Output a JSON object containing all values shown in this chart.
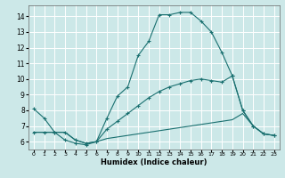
{
  "xlabel": "Humidex (Indice chaleur)",
  "background_color": "#cce8e8",
  "grid_color": "#ffffff",
  "line_color": "#1a7070",
  "xlim": [
    -0.5,
    23.5
  ],
  "ylim": [
    5.5,
    14.7
  ],
  "xticks": [
    0,
    1,
    2,
    3,
    4,
    5,
    6,
    7,
    8,
    9,
    10,
    11,
    12,
    13,
    14,
    15,
    16,
    17,
    18,
    19,
    20,
    21,
    22,
    23
  ],
  "yticks": [
    6,
    7,
    8,
    9,
    10,
    11,
    12,
    13,
    14
  ],
  "series1_x": [
    0,
    1,
    2,
    3,
    4,
    5,
    6,
    7,
    8,
    9,
    10,
    11,
    12,
    13,
    14,
    15,
    16,
    17,
    18,
    19,
    20,
    21,
    22,
    23
  ],
  "series1_y": [
    8.1,
    7.5,
    6.6,
    6.1,
    5.9,
    5.8,
    6.0,
    7.5,
    8.9,
    9.5,
    11.5,
    12.4,
    14.1,
    14.1,
    14.25,
    14.25,
    13.7,
    13.0,
    11.7,
    10.2,
    8.0,
    7.0,
    6.5,
    6.4
  ],
  "series2_x": [
    0,
    1,
    2,
    3,
    4,
    5,
    6,
    7,
    8,
    9,
    10,
    11,
    12,
    13,
    14,
    15,
    16,
    17,
    18,
    19,
    20,
    21,
    22,
    23
  ],
  "series2_y": [
    6.6,
    6.6,
    6.6,
    6.6,
    6.1,
    5.9,
    6.0,
    6.8,
    7.3,
    7.8,
    8.3,
    8.8,
    9.2,
    9.5,
    9.7,
    9.9,
    10.0,
    9.9,
    9.8,
    10.2,
    8.0,
    7.0,
    6.5,
    6.4
  ],
  "series3_x": [
    0,
    1,
    2,
    3,
    4,
    5,
    6,
    7,
    8,
    9,
    10,
    11,
    12,
    13,
    14,
    15,
    16,
    17,
    18,
    19,
    20,
    21,
    22,
    23
  ],
  "series3_y": [
    6.6,
    6.6,
    6.6,
    6.6,
    6.1,
    5.9,
    6.0,
    6.2,
    6.3,
    6.4,
    6.5,
    6.6,
    6.7,
    6.8,
    6.9,
    7.0,
    7.1,
    7.2,
    7.3,
    7.4,
    7.8,
    7.0,
    6.5,
    6.4
  ]
}
